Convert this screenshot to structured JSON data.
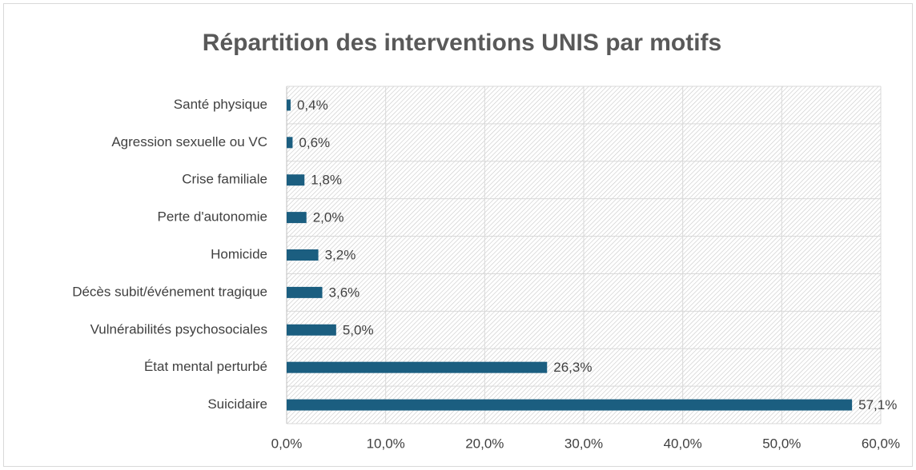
{
  "chart_data": {
    "type": "bar",
    "orientation": "horizontal",
    "title": "Répartition des interventions UNIS par motifs",
    "categories": [
      "Santé physique",
      "Agression sexuelle ou VC",
      "Crise familiale",
      "Perte d'autonomie",
      "Homicide",
      "Décès subit/événement tragique",
      "Vulnérabilités psychosociales",
      "État mental perturbé",
      "Suicidaire"
    ],
    "values": [
      0.4,
      0.6,
      1.8,
      2.0,
      3.2,
      3.6,
      5.0,
      26.3,
      57.1
    ],
    "value_labels": [
      "0,4%",
      "0,6%",
      "1,8%",
      "2,0%",
      "3,2%",
      "3,6%",
      "5,0%",
      "26,3%",
      "57,1%"
    ],
    "color": "#1b5e80",
    "xlim": [
      0,
      60
    ],
    "xticks": [
      {
        "value": 0,
        "label": "0,0%"
      },
      {
        "value": 10,
        "label": "10,0%"
      },
      {
        "value": 20,
        "label": "20,0%"
      },
      {
        "value": 30,
        "label": "30,0%"
      },
      {
        "value": 40,
        "label": "40,0%"
      },
      {
        "value": 50,
        "label": "50,0%"
      },
      {
        "value": 60,
        "label": "60,0%"
      }
    ],
    "grid": true
  }
}
